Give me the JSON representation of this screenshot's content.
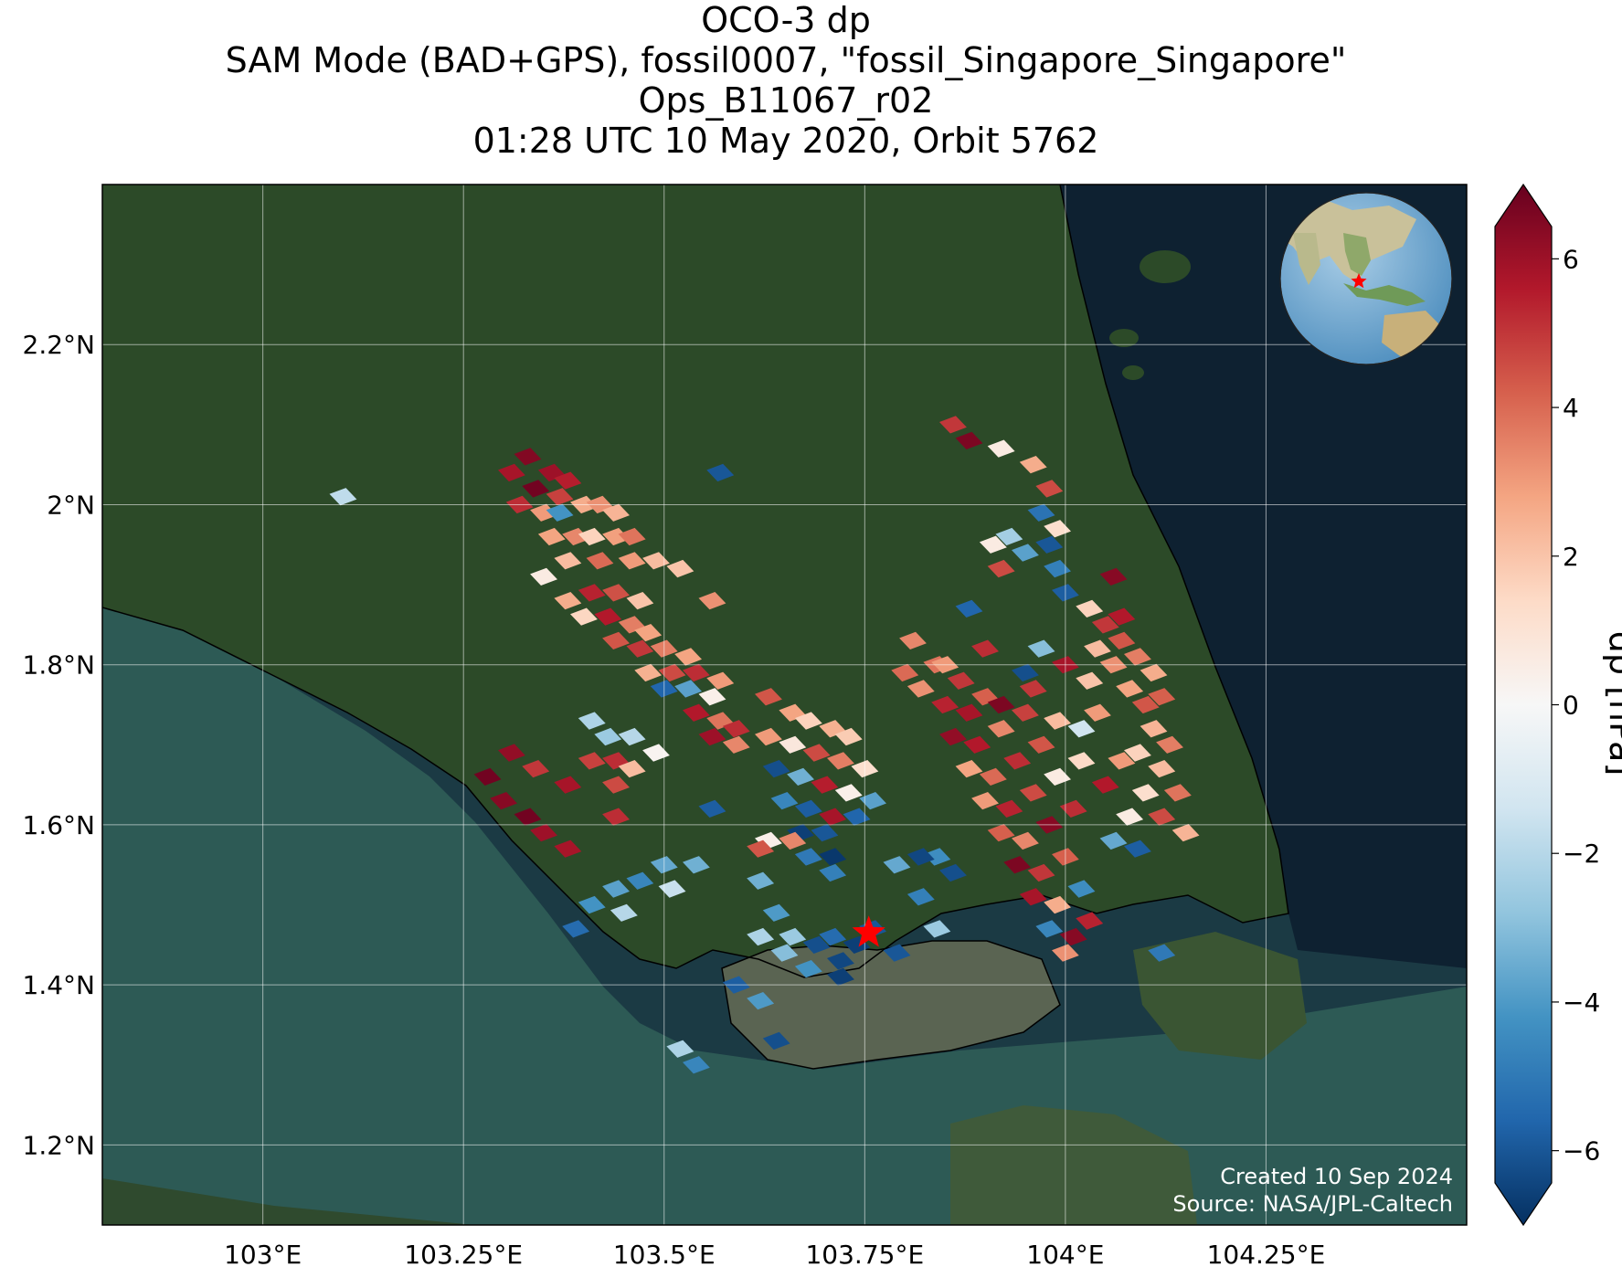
{
  "title": {
    "line1": "OCO-3 dp",
    "line2": "SAM Mode (BAD+GPS), fossil0007, \"fossil_Singapore_Singapore\"",
    "line3": "Ops_B11067_r02",
    "line4": "01:28 UTC 10 May 2020, Orbit 5762"
  },
  "map": {
    "lon_range": [
      102.8,
      104.5
    ],
    "lat_range": [
      1.1,
      2.4
    ],
    "lon_ticks": [
      {
        "value": 103.0,
        "label": "103°E"
      },
      {
        "value": 103.25,
        "label": "103.25°E"
      },
      {
        "value": 103.5,
        "label": "103.5°E"
      },
      {
        "value": 103.75,
        "label": "103.75°E"
      },
      {
        "value": 104.0,
        "label": "104°E"
      },
      {
        "value": 104.25,
        "label": "104.25°E"
      }
    ],
    "lat_ticks": [
      {
        "value": 1.2,
        "label": "1.2°N"
      },
      {
        "value": 1.4,
        "label": "1.4°N"
      },
      {
        "value": 1.6,
        "label": "1.6°N"
      },
      {
        "value": 1.8,
        "label": "1.8°N"
      },
      {
        "value": 2.0,
        "label": "2°N"
      },
      {
        "value": 2.2,
        "label": "2.2°N"
      }
    ],
    "grid": true,
    "target_marker": {
      "lon": 103.755,
      "lat": 1.465,
      "symbol": "star",
      "color": "#ff0000"
    },
    "credit_line1": "Created 10 Sep 2024",
    "credit_line2": "Source: NASA/JPL-Caltech",
    "colors": {
      "land": "#2f4a2a",
      "sea": "#1d4a4f",
      "deep_sea": "#0e2030"
    },
    "inset_globe": {
      "center_lon": 104,
      "center_lat": 1.5,
      "placement": "top-right"
    }
  },
  "colorbar": {
    "label": "dp [hPa]",
    "range": [
      -7,
      7
    ],
    "ticks": [
      {
        "value": -6,
        "label": "−6"
      },
      {
        "value": -4,
        "label": "−4"
      },
      {
        "value": -2,
        "label": "−2"
      },
      {
        "value": 0,
        "label": "0"
      },
      {
        "value": 2,
        "label": "2"
      },
      {
        "value": 4,
        "label": "4"
      },
      {
        "value": 6,
        "label": "6"
      }
    ],
    "colormap": [
      "#053061",
      "#2166ac",
      "#4393c3",
      "#92c5de",
      "#d1e5f0",
      "#f7f7f7",
      "#fddbc7",
      "#f4a582",
      "#d6604d",
      "#b2182b",
      "#67001f"
    ]
  },
  "chart_data": {
    "type": "heatmap",
    "variable": "dp",
    "units": "hPa",
    "points": [
      [
        103.33,
        2.06,
        6.5
      ],
      [
        103.36,
        2.04,
        6.0
      ],
      [
        103.38,
        2.03,
        5.5
      ],
      [
        103.31,
        2.04,
        5.8
      ],
      [
        103.34,
        2.02,
        6.8
      ],
      [
        103.37,
        2.01,
        4.8
      ],
      [
        103.32,
        2.0,
        5.2
      ],
      [
        103.35,
        1.99,
        3.0
      ],
      [
        103.37,
        1.99,
        -4.2
      ],
      [
        103.4,
        2.0,
        2.6
      ],
      [
        103.42,
        2.0,
        3.2
      ],
      [
        103.44,
        1.99,
        2.4
      ],
      [
        103.36,
        1.96,
        2.8
      ],
      [
        103.39,
        1.96,
        3.4
      ],
      [
        103.41,
        1.96,
        1.6
      ],
      [
        103.44,
        1.96,
        2.9
      ],
      [
        103.46,
        1.96,
        3.8
      ],
      [
        103.38,
        1.93,
        2.2
      ],
      [
        103.42,
        1.93,
        4.0
      ],
      [
        103.46,
        1.93,
        3.0
      ],
      [
        103.49,
        1.93,
        2.2
      ],
      [
        103.52,
        1.92,
        2.0
      ],
      [
        103.35,
        1.91,
        0.6
      ],
      [
        103.38,
        1.88,
        2.6
      ],
      [
        103.41,
        1.89,
        5.4
      ],
      [
        103.44,
        1.89,
        4.5
      ],
      [
        103.47,
        1.88,
        2.0
      ],
      [
        103.56,
        1.88,
        3.2
      ],
      [
        103.4,
        1.86,
        1.5
      ],
      [
        103.43,
        1.86,
        5.6
      ],
      [
        103.46,
        1.85,
        3.6
      ],
      [
        103.48,
        1.84,
        2.8
      ],
      [
        103.44,
        1.83,
        4.4
      ],
      [
        103.47,
        1.82,
        5.0
      ],
      [
        103.5,
        1.82,
        3.6
      ],
      [
        103.53,
        1.81,
        2.8
      ],
      [
        103.48,
        1.79,
        2.5
      ],
      [
        103.51,
        1.79,
        4.6
      ],
      [
        103.54,
        1.79,
        5.2
      ],
      [
        103.57,
        1.78,
        3.0
      ],
      [
        103.5,
        1.77,
        -5.6
      ],
      [
        103.53,
        1.77,
        -3.8
      ],
      [
        103.56,
        1.76,
        0.4
      ],
      [
        103.54,
        1.74,
        5.6
      ],
      [
        103.57,
        1.73,
        3.8
      ],
      [
        103.59,
        1.72,
        5.2
      ],
      [
        103.56,
        1.71,
        6.0
      ],
      [
        103.59,
        1.7,
        3.4
      ],
      [
        103.41,
        1.73,
        -2.2
      ],
      [
        103.43,
        1.71,
        -2.6
      ],
      [
        103.46,
        1.71,
        -2.0
      ],
      [
        103.49,
        1.69,
        0.2
      ],
      [
        103.41,
        1.68,
        4.8
      ],
      [
        103.44,
        1.68,
        5.2
      ],
      [
        103.46,
        1.67,
        2.2
      ],
      [
        103.63,
        1.76,
        4.4
      ],
      [
        103.66,
        1.74,
        2.8
      ],
      [
        103.68,
        1.73,
        1.6
      ],
      [
        103.71,
        1.72,
        2.5
      ],
      [
        103.73,
        1.71,
        1.8
      ],
      [
        103.63,
        1.71,
        3.0
      ],
      [
        103.66,
        1.7,
        0.8
      ],
      [
        103.69,
        1.69,
        4.6
      ],
      [
        103.72,
        1.68,
        3.6
      ],
      [
        103.75,
        1.67,
        1.2
      ],
      [
        103.64,
        1.67,
        -6.2
      ],
      [
        103.67,
        1.66,
        -3.4
      ],
      [
        103.7,
        1.65,
        5.5
      ],
      [
        103.73,
        1.64,
        0.4
      ],
      [
        103.76,
        1.63,
        -3.8
      ],
      [
        103.65,
        1.63,
        -4.6
      ],
      [
        103.68,
        1.62,
        -5.8
      ],
      [
        103.71,
        1.61,
        5.8
      ],
      [
        103.74,
        1.61,
        -5.6
      ],
      [
        103.67,
        1.59,
        -6.6
      ],
      [
        103.63,
        1.58,
        0.4
      ],
      [
        103.66,
        1.58,
        3.4
      ],
      [
        103.7,
        1.59,
        -6.0
      ],
      [
        103.68,
        1.56,
        -5.0
      ],
      [
        103.71,
        1.56,
        -6.8
      ],
      [
        103.8,
        1.79,
        4.0
      ],
      [
        103.82,
        1.77,
        3.2
      ],
      [
        103.84,
        1.8,
        3.8
      ],
      [
        103.87,
        1.78,
        5.0
      ],
      [
        103.85,
        1.75,
        5.4
      ],
      [
        103.88,
        1.74,
        5.8
      ],
      [
        103.9,
        1.76,
        4.2
      ],
      [
        103.86,
        1.71,
        6.2
      ],
      [
        103.89,
        1.7,
        5.6
      ],
      [
        103.92,
        1.72,
        3.4
      ],
      [
        103.95,
        1.74,
        4.8
      ],
      [
        103.88,
        1.67,
        2.8
      ],
      [
        103.91,
        1.66,
        4.0
      ],
      [
        103.94,
        1.68,
        5.2
      ],
      [
        103.97,
        1.7,
        4.4
      ],
      [
        103.9,
        1.63,
        3.0
      ],
      [
        103.93,
        1.62,
        5.4
      ],
      [
        103.96,
        1.64,
        4.6
      ],
      [
        103.99,
        1.66,
        0.6
      ],
      [
        103.92,
        1.59,
        4.2
      ],
      [
        103.95,
        1.58,
        3.4
      ],
      [
        103.98,
        1.6,
        6.4
      ],
      [
        104.01,
        1.62,
        5.2
      ],
      [
        103.94,
        1.55,
        6.6
      ],
      [
        103.97,
        1.54,
        5.0
      ],
      [
        104.0,
        1.56,
        4.2
      ],
      [
        103.96,
        1.51,
        5.8
      ],
      [
        103.99,
        1.5,
        2.6
      ],
      [
        104.02,
        1.52,
        -4.4
      ],
      [
        103.98,
        1.47,
        -4.6
      ],
      [
        104.01,
        1.46,
        6.4
      ],
      [
        104.03,
        1.48,
        5.4
      ],
      [
        104.0,
        1.44,
        3.2
      ],
      [
        103.92,
        1.75,
        6.6
      ],
      [
        103.96,
        1.77,
        5.0
      ],
      [
        104.0,
        1.8,
        5.8
      ],
      [
        104.03,
        1.78,
        2.0
      ],
      [
        103.99,
        1.73,
        2.2
      ],
      [
        104.02,
        1.72,
        -1.4
      ],
      [
        104.04,
        1.74,
        3.0
      ],
      [
        103.96,
        2.05,
        2.6
      ],
      [
        103.98,
        2.02,
        4.6
      ],
      [
        103.97,
        1.99,
        -5.2
      ],
      [
        103.99,
        1.97,
        1.2
      ],
      [
        103.98,
        1.95,
        -6.0
      ],
      [
        103.99,
        1.92,
        -4.8
      ],
      [
        104.0,
        1.89,
        -5.8
      ],
      [
        103.93,
        1.96,
        -2.4
      ],
      [
        103.95,
        1.94,
        -3.8
      ],
      [
        103.92,
        1.92,
        4.6
      ],
      [
        103.91,
        1.95,
        0.6
      ],
      [
        104.03,
        1.87,
        1.6
      ],
      [
        104.05,
        1.85,
        5.0
      ],
      [
        104.07,
        1.83,
        4.4
      ],
      [
        104.09,
        1.81,
        3.6
      ],
      [
        104.11,
        1.79,
        2.6
      ],
      [
        104.12,
        1.76,
        4.2
      ],
      [
        104.04,
        1.82,
        2.2
      ],
      [
        104.06,
        1.8,
        3.2
      ],
      [
        104.08,
        1.77,
        2.8
      ],
      [
        104.1,
        1.75,
        4.4
      ],
      [
        104.11,
        1.72,
        2.4
      ],
      [
        104.13,
        1.7,
        3.6
      ],
      [
        104.09,
        1.69,
        1.6
      ],
      [
        104.12,
        1.67,
        2.2
      ],
      [
        104.1,
        1.64,
        1.2
      ],
      [
        104.14,
        1.64,
        3.8
      ],
      [
        104.08,
        1.61,
        0.6
      ],
      [
        104.12,
        1.61,
        4.6
      ],
      [
        104.06,
        1.58,
        -3.6
      ],
      [
        104.09,
        1.57,
        -5.8
      ],
      [
        104.15,
        1.59,
        2.4
      ],
      [
        104.07,
        1.86,
        5.6
      ],
      [
        104.06,
        1.91,
        6.4
      ],
      [
        103.95,
        1.79,
        -6.2
      ],
      [
        103.97,
        1.82,
        -3.0
      ],
      [
        104.05,
        1.65,
        5.6
      ],
      [
        104.07,
        1.68,
        3.0
      ],
      [
        104.02,
        1.68,
        1.4
      ],
      [
        103.86,
        2.1,
        5.0
      ],
      [
        103.88,
        2.08,
        6.6
      ],
      [
        103.92,
        2.07,
        0.6
      ],
      [
        103.88,
        1.87,
        -5.6
      ],
      [
        103.9,
        1.82,
        5.2
      ],
      [
        103.81,
        1.83,
        3.4
      ],
      [
        103.85,
        1.8,
        3.0
      ],
      [
        103.57,
        2.04,
        -6.0
      ],
      [
        103.1,
        2.01,
        -1.8
      ],
      [
        103.28,
        1.66,
        6.8
      ],
      [
        103.3,
        1.63,
        6.4
      ],
      [
        103.33,
        1.61,
        6.8
      ],
      [
        103.35,
        1.59,
        6.0
      ],
      [
        103.38,
        1.57,
        5.8
      ],
      [
        103.31,
        1.69,
        6.2
      ],
      [
        103.34,
        1.67,
        5.0
      ],
      [
        103.38,
        1.65,
        5.8
      ],
      [
        103.44,
        1.65,
        4.6
      ],
      [
        103.44,
        1.61,
        5.2
      ],
      [
        103.56,
        1.62,
        -5.8
      ],
      [
        103.62,
        1.57,
        4.4
      ],
      [
        103.62,
        1.53,
        -3.4
      ],
      [
        103.64,
        1.49,
        -4.0
      ],
      [
        103.66,
        1.46,
        -2.6
      ],
      [
        103.69,
        1.45,
        -6.2
      ],
      [
        103.71,
        1.46,
        -5.4
      ],
      [
        103.74,
        1.45,
        -6.6
      ],
      [
        103.76,
        1.47,
        -6.0
      ],
      [
        103.72,
        1.43,
        -6.4
      ],
      [
        103.68,
        1.42,
        -4.2
      ],
      [
        103.65,
        1.44,
        -3.0
      ],
      [
        103.62,
        1.46,
        -2.2
      ],
      [
        103.79,
        1.44,
        -6.0
      ],
      [
        103.82,
        1.51,
        -4.8
      ],
      [
        103.84,
        1.47,
        -2.6
      ],
      [
        103.86,
        1.54,
        -6.2
      ],
      [
        103.84,
        1.56,
        -4.4
      ],
      [
        103.5,
        1.55,
        -3.6
      ],
      [
        103.47,
        1.53,
        -4.6
      ],
      [
        103.44,
        1.52,
        -3.8
      ],
      [
        103.41,
        1.5,
        -4.2
      ],
      [
        103.39,
        1.47,
        -5.4
      ],
      [
        103.45,
        1.49,
        -2.0
      ],
      [
        103.51,
        1.52,
        -1.6
      ],
      [
        103.54,
        1.55,
        -3.4
      ],
      [
        103.71,
        1.54,
        -4.8
      ],
      [
        103.72,
        1.41,
        -6.6
      ],
      [
        103.59,
        1.4,
        -5.8
      ],
      [
        103.62,
        1.38,
        -4.0
      ],
      [
        103.52,
        1.32,
        -2.2
      ],
      [
        103.54,
        1.3,
        -4.6
      ],
      [
        103.64,
        1.33,
        -6.2
      ],
      [
        104.12,
        1.44,
        -5.0
      ],
      [
        103.82,
        1.56,
        -6.4
      ],
      [
        103.79,
        1.55,
        -3.6
      ]
    ]
  }
}
